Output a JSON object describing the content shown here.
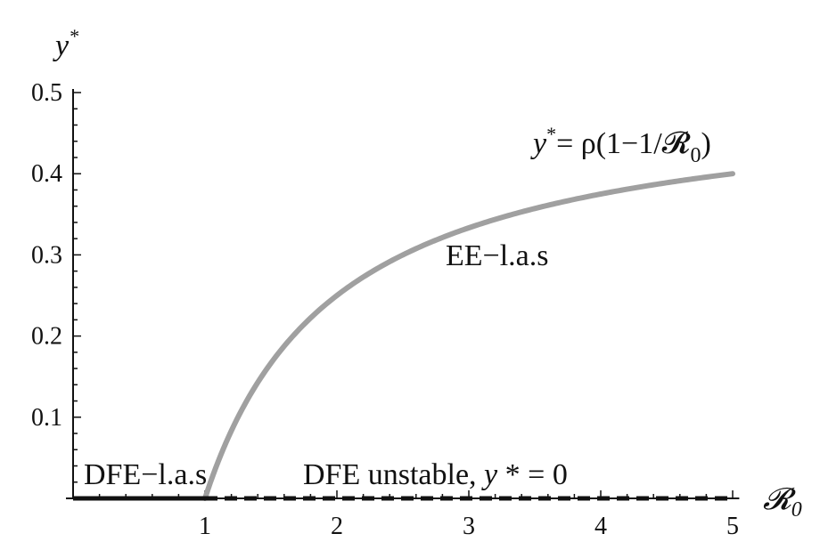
{
  "chart_data": {
    "type": "line",
    "title": "",
    "xlabel": "𝓡",
    "xlabel_sub": "0",
    "ylabel": "y",
    "ylabel_sup": "*",
    "xlim": [
      0,
      5.05
    ],
    "ylim": [
      0,
      0.5
    ],
    "x_ticks": [
      1,
      2,
      3,
      4,
      5
    ],
    "x_tick_labels": [
      "1",
      "2",
      "3",
      "4",
      "5"
    ],
    "y_ticks": [
      0.1,
      0.2,
      0.3,
      0.4,
      0.5
    ],
    "y_tick_labels": [
      "0.1",
      "0.2",
      "0.3",
      "0.4",
      "0.5"
    ],
    "grid": false,
    "legend": "none",
    "series": [
      {
        "style": "solid-gray",
        "color": "#a0a0a0",
        "formula_rho": 0.5,
        "x": [
          1.0,
          1.1,
          1.2,
          1.3,
          1.5,
          1.75,
          2.0,
          2.5,
          3.0,
          3.5,
          4.0,
          4.5,
          5.0
        ],
        "y": [
          0.0,
          0.045,
          0.083,
          0.115,
          0.167,
          0.214,
          0.25,
          0.3,
          0.333,
          0.357,
          0.375,
          0.389,
          0.4
        ]
      },
      {
        "style": "solid-black",
        "color": "#111111",
        "x": [
          0,
          1
        ],
        "y": [
          0,
          0
        ]
      },
      {
        "style": "dashed-black",
        "color": "#111111",
        "x": [
          1,
          5
        ],
        "y": [
          0,
          0
        ]
      }
    ],
    "annotations": {
      "curve_label_main": "y",
      "curve_label_sup": "*",
      "curve_label_eq": "= ρ(1−1/𝓡",
      "curve_label_sub": "0",
      "curve_label_close": ")",
      "ee": "EE−l.a.s",
      "dfe_stable": "DFE−l.a.s",
      "dfe_unstable_text": "DFE unstable, ",
      "dfe_unstable_var": "y",
      "dfe_unstable_tail": " * = 0"
    }
  }
}
